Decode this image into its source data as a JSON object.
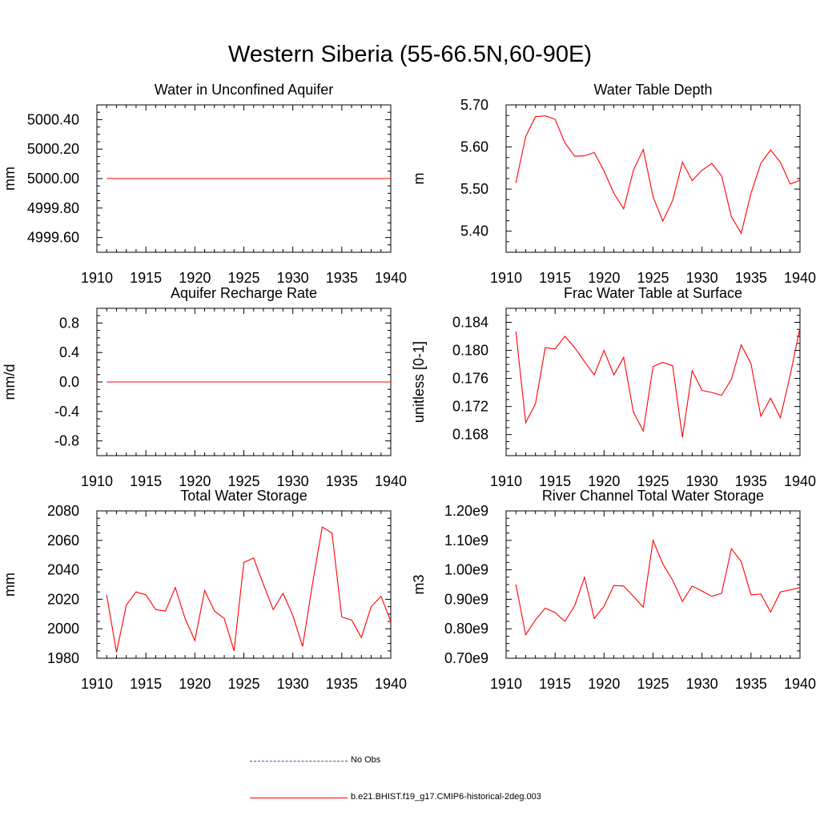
{
  "title": "Western Siberia (55-66.5N,60-90E)",
  "colors": {
    "model": "#ff0000",
    "obs": "#4a4aa8",
    "axis": "#000000"
  },
  "legend": [
    {
      "label": "No Obs",
      "style": "dashed",
      "color": "#4a4aa8"
    },
    {
      "label": "b.e21.BHIST.f19_g17.CMIP6-historical-2deg.003",
      "style": "solid",
      "color": "#ff0000"
    }
  ],
  "chart_data": [
    {
      "type": "line",
      "title": "Water in Unconfined Aquifer",
      "ylabel": "mm",
      "xlim": [
        1910,
        1940
      ],
      "ylim": [
        4999.5,
        5000.5
      ],
      "xticks": [
        1910,
        1915,
        1920,
        1925,
        1930,
        1935,
        1940
      ],
      "yticks": [
        4999.6,
        4999.8,
        5000.0,
        5000.2,
        5000.4
      ],
      "ytick_labels": [
        "4999.60",
        "4999.80",
        "5000.00",
        "5000.20",
        "5000.40"
      ],
      "series": [
        {
          "x": [
            1911,
            1940
          ],
          "values": [
            5000.0,
            5000.0
          ]
        }
      ]
    },
    {
      "type": "line",
      "title": "Water Table Depth",
      "ylabel": "m",
      "xlim": [
        1910,
        1940
      ],
      "ylim": [
        5.35,
        5.7
      ],
      "xticks": [
        1910,
        1915,
        1920,
        1925,
        1930,
        1935,
        1940
      ],
      "yticks": [
        5.4,
        5.5,
        5.6,
        5.7
      ],
      "ytick_labels": [
        "5.40",
        "5.50",
        "5.60",
        "5.70"
      ],
      "series": [
        {
          "x": [
            1911,
            1912,
            1913,
            1914,
            1915,
            1916,
            1917,
            1918,
            1919,
            1920,
            1921,
            1922,
            1923,
            1924,
            1925,
            1926,
            1927,
            1928,
            1929,
            1930,
            1931,
            1932,
            1933,
            1934,
            1935,
            1936,
            1937,
            1938,
            1939,
            1940
          ],
          "values": [
            5.515,
            5.625,
            5.672,
            5.674,
            5.666,
            5.61,
            5.578,
            5.579,
            5.587,
            5.543,
            5.49,
            5.453,
            5.545,
            5.594,
            5.482,
            5.424,
            5.473,
            5.564,
            5.52,
            5.545,
            5.561,
            5.531,
            5.434,
            5.395,
            5.49,
            5.561,
            5.593,
            5.564,
            5.512,
            5.521
          ]
        }
      ]
    },
    {
      "type": "line",
      "title": "Aquifer Recharge Rate",
      "ylabel": "mm/d",
      "xlim": [
        1910,
        1940
      ],
      "ylim": [
        -1.0,
        1.0
      ],
      "xticks": [
        1910,
        1915,
        1920,
        1925,
        1930,
        1935,
        1940
      ],
      "yticks": [
        -0.8,
        -0.4,
        0.0,
        0.4,
        0.8
      ],
      "ytick_labels": [
        "-0.8",
        "-0.4",
        "0.0",
        "0.4",
        "0.8"
      ],
      "series": [
        {
          "x": [
            1911,
            1940
          ],
          "values": [
            0.0,
            0.0
          ]
        }
      ]
    },
    {
      "type": "line",
      "title": "Frac Water Table at Surface",
      "ylabel": "unitless [0-1]",
      "xlim": [
        1910,
        1940
      ],
      "ylim": [
        0.165,
        0.186
      ],
      "xticks": [
        1910,
        1915,
        1920,
        1925,
        1930,
        1935,
        1940
      ],
      "yticks": [
        0.168,
        0.172,
        0.176,
        0.18,
        0.184
      ],
      "ytick_labels": [
        "0.168",
        "0.172",
        "0.176",
        "0.180",
        "0.184"
      ],
      "series": [
        {
          "x": [
            1911,
            1912,
            1913,
            1914,
            1915,
            1916,
            1917,
            1918,
            1919,
            1920,
            1921,
            1922,
            1923,
            1924,
            1925,
            1926,
            1927,
            1928,
            1929,
            1930,
            1931,
            1932,
            1933,
            1934,
            1935,
            1936,
            1937,
            1938,
            1939,
            1940
          ],
          "values": [
            0.1827,
            0.1697,
            0.1724,
            0.1804,
            0.1802,
            0.182,
            0.1804,
            0.1784,
            0.1765,
            0.18,
            0.1765,
            0.179,
            0.1712,
            0.1685,
            0.1777,
            0.1783,
            0.1778,
            0.1676,
            0.1771,
            0.1743,
            0.174,
            0.1736,
            0.1759,
            0.1808,
            0.1781,
            0.1706,
            0.1732,
            0.1704,
            0.1765,
            0.1832
          ]
        }
      ]
    },
    {
      "type": "line",
      "title": "Total Water Storage",
      "ylabel": "mm",
      "xlim": [
        1910,
        1940
      ],
      "ylim": [
        1980,
        2080
      ],
      "xticks": [
        1910,
        1915,
        1920,
        1925,
        1930,
        1935,
        1940
      ],
      "yticks": [
        1980,
        2000,
        2020,
        2040,
        2060,
        2080
      ],
      "ytick_labels": [
        "1980",
        "2000",
        "2020",
        "2040",
        "2060",
        "2080"
      ],
      "series": [
        {
          "x": [
            1911,
            1912,
            1913,
            1914,
            1915,
            1916,
            1917,
            1918,
            1919,
            1920,
            1921,
            1922,
            1923,
            1924,
            1925,
            1926,
            1927,
            1928,
            1929,
            1930,
            1931,
            1932,
            1933,
            1934,
            1935,
            1936,
            1937,
            1938,
            1939,
            1940
          ],
          "values": [
            2023,
            1984,
            2016,
            2025,
            2023,
            2013,
            2012,
            2028,
            2007,
            1992,
            2026,
            2012,
            2007,
            1985,
            2045,
            2048,
            2030,
            2013,
            2024,
            2009,
            1988,
            2030,
            2069,
            2065,
            2008,
            2006,
            1994,
            2015,
            2022,
            2005
          ]
        }
      ]
    },
    {
      "type": "line",
      "title": "River Channel Total Water Storage",
      "ylabel": "m3",
      "xlim": [
        1910,
        1940
      ],
      "ylim": [
        700000000.0,
        1200000000.0
      ],
      "xticks": [
        1910,
        1915,
        1920,
        1925,
        1930,
        1935,
        1940
      ],
      "yticks": [
        700000000.0,
        800000000.0,
        900000000.0,
        1000000000.0,
        1100000000.0,
        1200000000.0
      ],
      "ytick_labels": [
        "0.70e9",
        "0.80e9",
        "0.90e9",
        "1.00e9",
        "1.10e9",
        "1.20e9"
      ],
      "series": [
        {
          "x": [
            1911,
            1912,
            1913,
            1914,
            1915,
            1916,
            1917,
            1918,
            1919,
            1920,
            1921,
            1922,
            1923,
            1924,
            1925,
            1926,
            1927,
            1928,
            1929,
            1930,
            1931,
            1932,
            1933,
            1934,
            1935,
            1936,
            1937,
            1938,
            1939,
            1940
          ],
          "values": [
            950000000.0,
            780000000.0,
            830000000.0,
            870000000.0,
            855000000.0,
            825000000.0,
            878000000.0,
            975000000.0,
            835000000.0,
            876000000.0,
            947000000.0,
            945000000.0,
            910000000.0,
            873000000.0,
            1100000000.0,
            1020000000.0,
            965000000.0,
            893000000.0,
            945000000.0,
            928000000.0,
            910000000.0,
            920000000.0,
            1072000000.0,
            1028000000.0,
            915000000.0,
            918000000.0,
            857000000.0,
            925000000.0,
            932000000.0,
            940000000.0
          ]
        }
      ]
    }
  ]
}
